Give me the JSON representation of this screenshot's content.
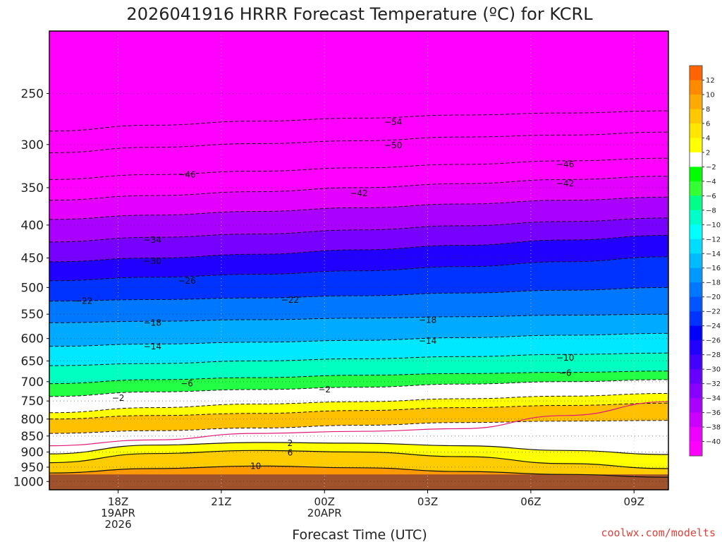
{
  "chart_data": {
    "type": "contour",
    "title": "2026041916 HRRR Forecast Temperature (ºC) for KCRL",
    "xlabel": "Forecast Time (UTC)",
    "ylabel": "",
    "credit": "coolwx.com/modelts",
    "y_scale": "log-pressure (hPa), inverted",
    "y_range": [
      1030,
      200
    ],
    "x_range_hours_since_run": [
      0,
      18
    ],
    "grid": "dotted",
    "x_ticks": [
      {
        "hour": 2,
        "lines": [
          "18Z",
          "19APR",
          "2026"
        ]
      },
      {
        "hour": 5,
        "lines": [
          "21Z"
        ]
      },
      {
        "hour": 8,
        "lines": [
          "00Z",
          "20APR"
        ]
      },
      {
        "hour": 11,
        "lines": [
          "03Z"
        ]
      },
      {
        "hour": 14,
        "lines": [
          "06Z"
        ]
      },
      {
        "hour": 17,
        "lines": [
          "09Z"
        ]
      }
    ],
    "y_ticks": [
      250,
      300,
      350,
      400,
      450,
      500,
      550,
      600,
      650,
      700,
      750,
      800,
      850,
      900,
      950,
      1000
    ],
    "colorbar": {
      "labels": [
        "12",
        "10",
        "8",
        "6",
        "4",
        "2",
        "−2",
        "−4",
        "−6",
        "−8",
        "−10",
        "−12",
        "−14",
        "−16",
        "−18",
        "−20",
        "−22",
        "−24",
        "−26",
        "−28",
        "−30",
        "−32",
        "−34",
        "−36",
        "−38",
        "−40"
      ],
      "colors": [
        "#ff6400",
        "#ff8a00",
        "#ffaa00",
        "#ffc800",
        "#ffe600",
        "#ffff00",
        "#ffffff",
        "#00ff00",
        "#33ff33",
        "#00ff88",
        "#00ffc8",
        "#00ffff",
        "#00ddff",
        "#00bbff",
        "#0099ff",
        "#0077ff",
        "#0055ff",
        "#0033ff",
        "#0000ff",
        "#2200ff",
        "#4400ff",
        "#6600ff",
        "#8800ff",
        "#aa00ff",
        "#cc00ff",
        "#ee00ff",
        "#ff00ff"
      ]
    },
    "fields": {
      "times": [
        0,
        3,
        6,
        9,
        12,
        15,
        18
      ],
      "isotherm_pressure_hPa": [
        {
          "temp": -54,
          "p": [
            286,
            280,
            276,
            273,
            270,
            268,
            266
          ]
        },
        {
          "temp": -50,
          "p": [
            309,
            303,
            299,
            296,
            292,
            290,
            287
          ]
        },
        {
          "temp": -46,
          "p": [
            340,
            334,
            330,
            326,
            322,
            318,
            315
          ]
        },
        {
          "temp": -42,
          "p": [
            366,
            360,
            355,
            350,
            345,
            340,
            336
          ]
        },
        {
          "temp": -38,
          "p": [
            392,
            386,
            381,
            376,
            371,
            366,
            362
          ]
        },
        {
          "temp": -34,
          "p": [
            425,
            418,
            413,
            407,
            401,
            395,
            390
          ]
        },
        {
          "temp": -30,
          "p": [
            456,
            450,
            444,
            437,
            430,
            422,
            415
          ]
        },
        {
          "temp": -26,
          "p": [
            488,
            482,
            477,
            471,
            464,
            456,
            448
          ]
        },
        {
          "temp": -22,
          "p": [
            525,
            522,
            519,
            515,
            510,
            505,
            500
          ]
        },
        {
          "temp": -18,
          "p": [
            567,
            564,
            561,
            558,
            555,
            552,
            550
          ]
        },
        {
          "temp": -14,
          "p": [
            617,
            612,
            608,
            604,
            598,
            593,
            589
          ]
        },
        {
          "temp": -10,
          "p": [
            661,
            656,
            650,
            645,
            640,
            635,
            632
          ]
        },
        {
          "temp": -6,
          "p": [
            705,
            695,
            690,
            684,
            680,
            677,
            674
          ]
        },
        {
          "temp": -2,
          "p": [
            738,
            726,
            720,
            714,
            706,
            700,
            695
          ]
        },
        {
          "temp": 2,
          "p": [
            782,
            768,
            758,
            752,
            744,
            737,
            730
          ]
        },
        {
          "temp": 6,
          "p": [
            800,
            790,
            784,
            776,
            768,
            762,
            756
          ]
        },
        {
          "temp": 10,
          "p": [
            842,
            834,
            826,
            818,
            810,
            806,
            804
          ]
        }
      ],
      "surface_warm_pressure_hPa": [
        {
          "temp": 2,
          "p": [
            906,
            878,
            870,
            872,
            880,
            895,
            908
          ]
        },
        {
          "temp": 6,
          "p": [
            935,
            905,
            895,
            900,
            915,
            938,
            955
          ]
        },
        {
          "temp": 10,
          "p": [
            970,
            955,
            946,
            952,
            965,
            975,
            985
          ]
        }
      ],
      "freezing_line_hPa": [
        880,
        862,
        842,
        836,
        828,
        790,
        752
      ]
    },
    "contour_labels": [
      {
        "text": "−54",
        "hour": 10,
        "p": 277
      },
      {
        "text": "−50",
        "hour": 10,
        "p": 301
      },
      {
        "text": "−46",
        "hour": 4,
        "p": 334
      },
      {
        "text": "−46",
        "hour": 15,
        "p": 322
      },
      {
        "text": "−42",
        "hour": 9,
        "p": 357
      },
      {
        "text": "−42",
        "hour": 15,
        "p": 345
      },
      {
        "text": "−34",
        "hour": 3,
        "p": 422
      },
      {
        "text": "−30",
        "hour": 3,
        "p": 455
      },
      {
        "text": "−26",
        "hour": 4,
        "p": 488
      },
      {
        "text": "−22",
        "hour": 1,
        "p": 525
      },
      {
        "text": "−22",
        "hour": 7,
        "p": 523
      },
      {
        "text": "−18",
        "hour": 3,
        "p": 567
      },
      {
        "text": "−18",
        "hour": 11,
        "p": 562
      },
      {
        "text": "−14",
        "hour": 3,
        "p": 617
      },
      {
        "text": "−14",
        "hour": 11,
        "p": 605
      },
      {
        "text": "−10",
        "hour": 15,
        "p": 643
      },
      {
        "text": "−6",
        "hour": 4,
        "p": 705
      },
      {
        "text": "−6",
        "hour": 15,
        "p": 679
      },
      {
        "text": "−2",
        "hour": 2,
        "p": 742
      },
      {
        "text": "−2",
        "hour": 8,
        "p": 720
      },
      {
        "text": "2",
        "hour": 7,
        "p": 872
      },
      {
        "text": "6",
        "hour": 7,
        "p": 902
      },
      {
        "text": "10",
        "hour": 6,
        "p": 947
      }
    ]
  }
}
